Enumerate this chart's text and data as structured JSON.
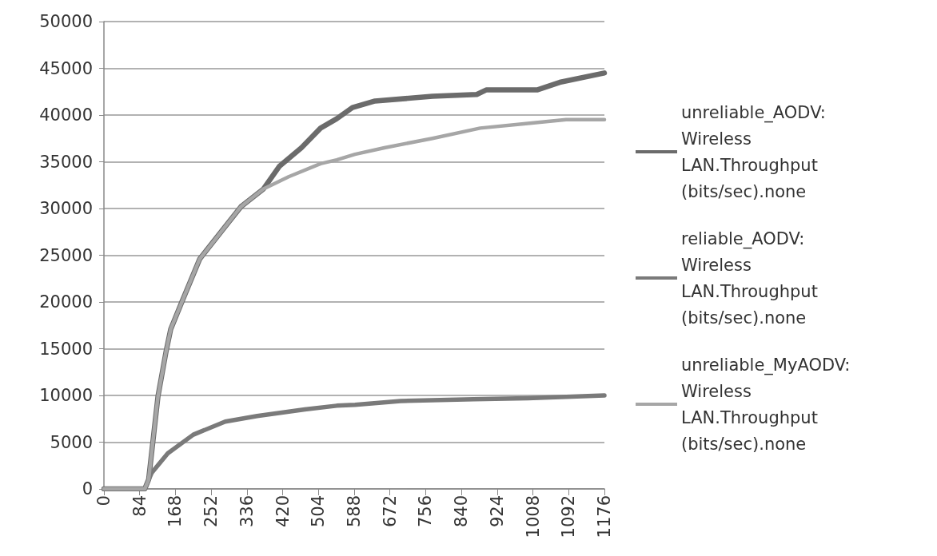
{
  "chart_data": {
    "type": "line",
    "xlim": [
      0,
      1176
    ],
    "xticks": [
      0,
      84,
      168,
      252,
      336,
      420,
      504,
      588,
      672,
      756,
      840,
      924,
      1008,
      1092,
      1176
    ],
    "ylim": [
      0,
      50000
    ],
    "yticks": [
      0,
      5000,
      10000,
      15000,
      20000,
      25000,
      30000,
      35000,
      40000,
      45000,
      50000
    ],
    "grid": "y",
    "legend": "right",
    "marker": "none",
    "line_style": "solid",
    "series": [
      {
        "name": "unreliable_AODV: Wireless LAN.Throughput (bits/sec).none",
        "color": "#6b6b6b",
        "x": [
          0,
          84,
          96,
          105,
          127,
          146,
          157,
          184,
          225,
          277,
          322,
          375,
          412,
          464,
          509,
          547,
          584,
          637,
          772,
          876,
          899,
          1019,
          1071,
          1176
        ],
        "values": [
          0,
          0,
          0,
          1000,
          9900,
          14700,
          17100,
          20100,
          24600,
          27600,
          30200,
          32100,
          34500,
          36500,
          38600,
          39600,
          40800,
          41500,
          42000,
          42200,
          42700,
          42700,
          43500,
          44500
        ]
      },
      {
        "name": "reliable_AODV: Wireless LAN.Throughput (bits/sec).none",
        "color": "#7a7a7a",
        "x": [
          0,
          84,
          96,
          112,
          150,
          210,
          285,
          360,
          472,
          547,
          590,
          697,
          869,
          996,
          1176
        ],
        "values": [
          0,
          0,
          0,
          1700,
          3800,
          5800,
          7200,
          7800,
          8500,
          8900,
          9000,
          9400,
          9600,
          9700,
          10000
        ]
      },
      {
        "name": "unreliable_MyAODV: Wireless LAN.Throughput (bits/sec).none",
        "color": "#a6a6a6",
        "x": [
          0,
          84,
          96,
          105,
          127,
          146,
          157,
          184,
          225,
          277,
          322,
          375,
          434,
          509,
          547,
          590,
          659,
          772,
          884,
          996,
          1086,
          1176
        ],
        "values": [
          0,
          0,
          0,
          1000,
          9900,
          14700,
          17100,
          20100,
          24600,
          27600,
          30200,
          32100,
          33400,
          34800,
          35200,
          35800,
          36500,
          37500,
          38600,
          39100,
          39500,
          39500
        ]
      }
    ]
  }
}
